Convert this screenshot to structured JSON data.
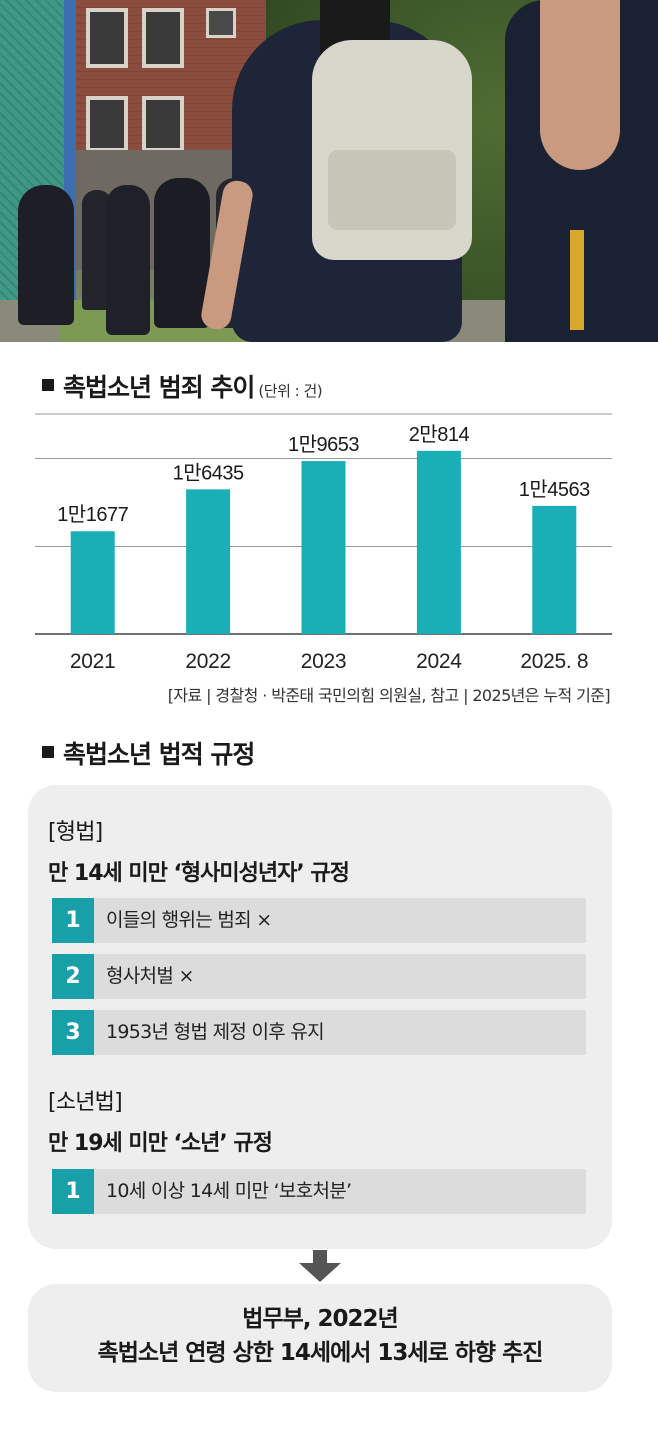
{
  "chart_section": {
    "title": "촉법소년 범죄 추이",
    "unit": "(단위 : 건)",
    "source": "[자료 | 경찰청 · 박준태 국민의힘 의원실, 참고 | 2025년은 누적 기준]"
  },
  "chart_data": {
    "type": "bar",
    "title": "촉법소년 범죄 추이",
    "unit": "건",
    "categories": [
      "2021",
      "2022",
      "2023",
      "2024",
      "2025. 8"
    ],
    "values": [
      11677,
      16435,
      19653,
      20814,
      14563
    ],
    "data_labels": [
      "1만1677",
      "1만6435",
      "1만9653",
      "2만814",
      "1만4563"
    ],
    "ylim": [
      0,
      25000
    ],
    "grid": true,
    "colors": {
      "bar": "#1aaeb6",
      "grid": "#9a9a9a",
      "axis": "#444444"
    }
  },
  "legal_section": {
    "title": "촉법소년 법적 규정",
    "criminal_law": {
      "name": "[형법]",
      "rule": "만 14세 미만 ‘형사미성년자’ 규정",
      "items": [
        {
          "num": "1",
          "text": "이들의 행위는 범죄 ×"
        },
        {
          "num": "2",
          "text": "형사처벌 ×"
        },
        {
          "num": "3",
          "text": "1953년 형법 제정 이후 유지"
        }
      ]
    },
    "juvenile_law": {
      "name": "[소년법]",
      "rule": "만 19세 미만 ‘소년’ 규정",
      "items": [
        {
          "num": "1",
          "text": "10세 이상 14세 미만 ‘보호처분’"
        }
      ]
    }
  },
  "conclusion": {
    "line1": "법무부, 2022년",
    "line2": "촉법소년 연령 상한 14세에서 13세로 하향 추진"
  },
  "colors": {
    "accent": "#17a0a8",
    "box_bg": "#eeeeee",
    "item_bg": "#dcdcdc"
  }
}
